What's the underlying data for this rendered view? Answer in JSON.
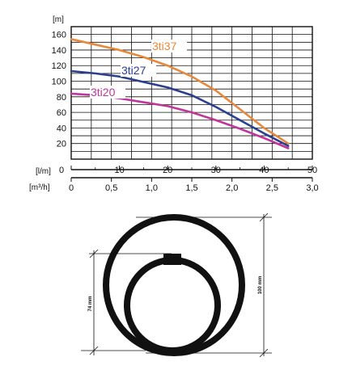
{
  "chart_data": {
    "type": "line",
    "ylabel": "[m]",
    "xlabel_flow_lm": "[l/m]",
    "xlabel_flow_m3h": "[m³/h]",
    "ylim": [
      0,
      170
    ],
    "xlim_lm": [
      0,
      50
    ],
    "xlim_m3h": [
      0,
      3.0
    ],
    "y_ticks": [
      "20",
      "40",
      "60",
      "80",
      "100",
      "120",
      "140",
      "160"
    ],
    "y_tick_values": [
      20,
      40,
      60,
      80,
      100,
      120,
      140,
      160
    ],
    "x_ticks_lm": [
      "0",
      "10",
      "20",
      "30",
      "40",
      "50"
    ],
    "x_tick_values_lm": [
      0,
      10,
      20,
      30,
      40,
      50
    ],
    "x_ticks_m3h": [
      "0",
      "0,5",
      "1,0",
      "1,5",
      "2,0",
      "2,5",
      "3,0"
    ],
    "x_tick_values_m3h": [
      0,
      0.5,
      1.0,
      1.5,
      2.0,
      2.5,
      3.0
    ],
    "grid": true,
    "series": [
      {
        "name": "3ti37",
        "color": "#e8883a",
        "x": [
          0,
          5,
          10,
          15,
          20,
          25,
          30,
          35,
          40,
          45
        ],
        "y": [
          154,
          147,
          140,
          131,
          120,
          106,
          88,
          64,
          40,
          20
        ]
      },
      {
        "name": "3ti27",
        "color": "#2b3f8f",
        "x": [
          0,
          5,
          10,
          15,
          20,
          25,
          30,
          35,
          40,
          45
        ],
        "y": [
          113,
          110,
          106,
          99,
          92,
          82,
          67,
          50,
          33,
          17
        ]
      },
      {
        "name": "3ti20",
        "color": "#c0359b",
        "x": [
          0,
          5,
          10,
          15,
          20,
          25,
          30,
          35,
          40,
          45
        ],
        "y": [
          84,
          82,
          78,
          73,
          68,
          60,
          50,
          39,
          27,
          14
        ]
      }
    ]
  },
  "diagram": {
    "height_outer": "100 mm",
    "height_inner": "74 mm"
  }
}
